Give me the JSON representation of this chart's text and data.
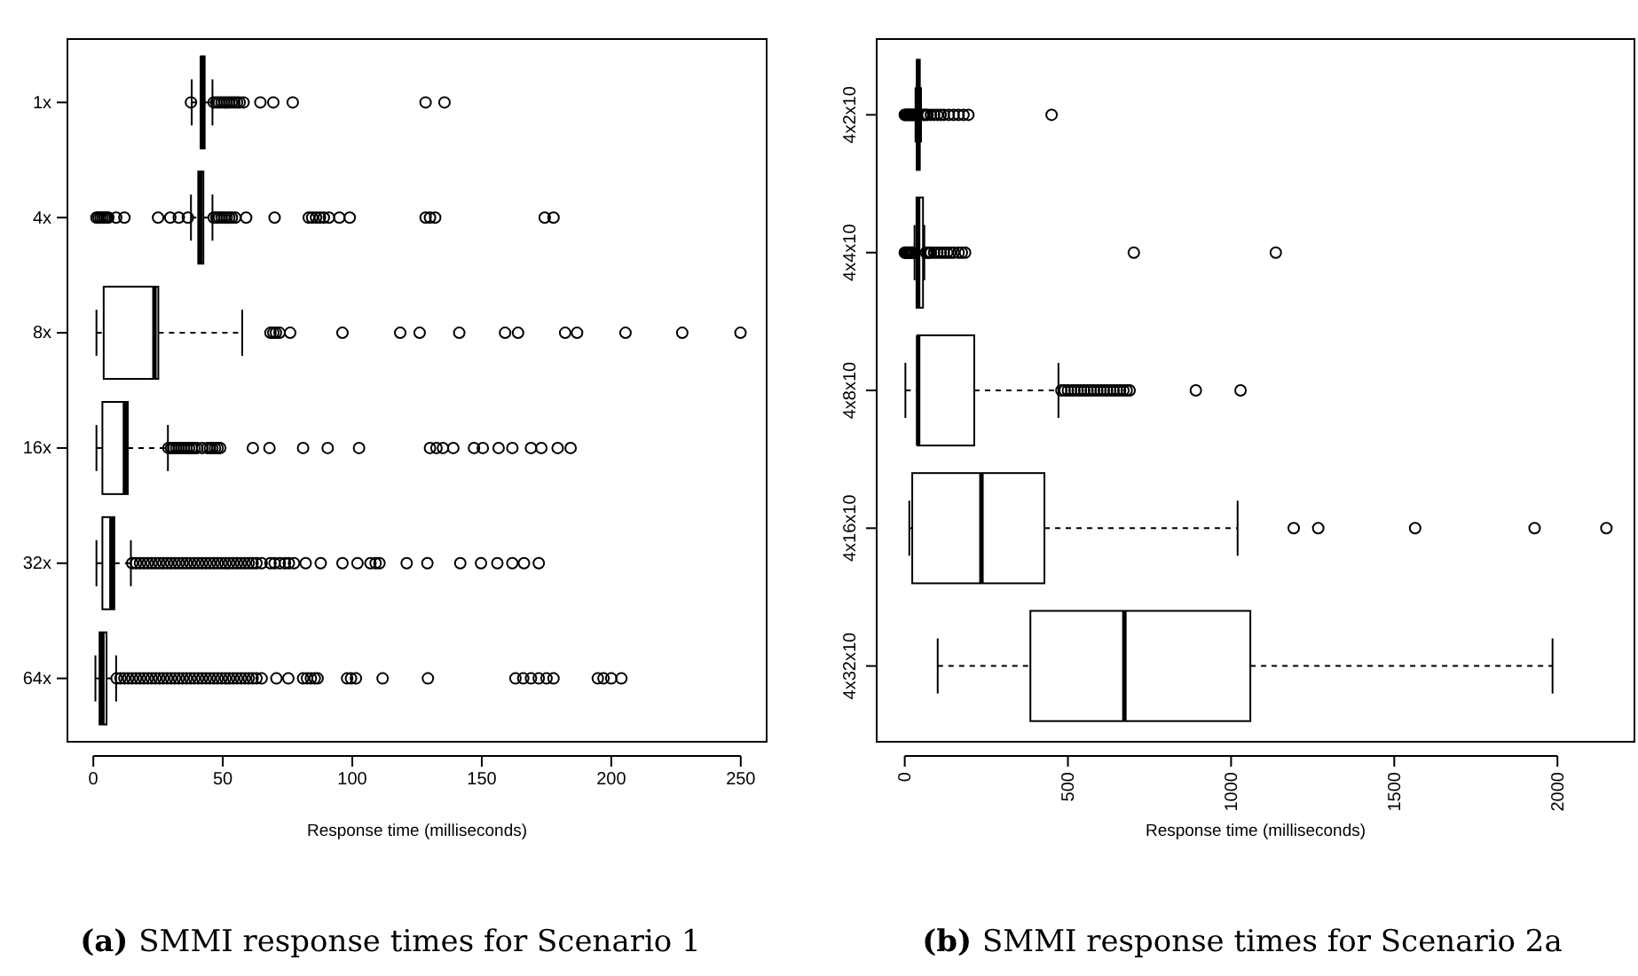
{
  "chart_data": [
    {
      "type": "box",
      "orientation": "horizontal",
      "xlabel": "Response time (milliseconds)",
      "categories": [
        "1x",
        "4x",
        "8x",
        "16x",
        "32x",
        "64x"
      ],
      "xlim": [
        -10,
        260
      ],
      "xticks": [
        0,
        50,
        100,
        150,
        200,
        250
      ],
      "annotations": [
        "(a) SMMI response times for Scenario 1"
      ],
      "boxes": [
        {
          "low": 38,
          "q1": 41.5,
          "median": 42,
          "q3": 43,
          "high": 46,
          "outliers": [
            37.7,
            46.5,
            47.5,
            48.5,
            49.5,
            50.5,
            51.5,
            52.5,
            53.5,
            54.5,
            55.5,
            56.5,
            58,
            64.5,
            69.5,
            77,
            128.3,
            135.6
          ]
        },
        {
          "low": 37.7,
          "q1": 40.5,
          "median": 41.3,
          "q3": 42.5,
          "high": 46,
          "outliers": [
            1.2,
            2,
            2.8,
            3.6,
            4.4,
            5.2,
            5.8,
            8.8,
            12,
            25,
            29.7,
            33,
            36.5,
            46.5,
            47.5,
            48.5,
            49.5,
            50.5,
            51.5,
            52.5,
            53.5,
            54.8,
            59,
            70,
            83.2,
            84.5,
            86,
            87.5,
            89,
            91,
            95,
            99,
            128.3,
            130,
            132,
            174.3,
            177.7
          ]
        },
        {
          "low": 1.2,
          "q1": 4,
          "median": 23.6,
          "q3": 25.1,
          "high": 57.5,
          "outliers": [
            68.4,
            69.5,
            70.5,
            71.9,
            76,
            96.2,
            118.5,
            126,
            141.3,
            159,
            164,
            182.2,
            186.8,
            205.5,
            227.4,
            249.9
          ]
        },
        {
          "low": 1.2,
          "q1": 3.5,
          "median": 12.2,
          "q3": 13.3,
          "high": 28.8,
          "outliers": [
            29,
            30,
            31,
            32,
            33,
            34,
            35,
            36,
            37,
            38,
            39,
            40,
            42,
            44,
            45,
            46,
            47,
            48,
            49,
            61.6,
            68,
            81,
            90.5,
            102.6,
            130,
            132.5,
            135,
            139,
            147,
            150.4,
            156.5,
            161.8,
            169,
            173,
            179.3,
            184.3
          ]
        },
        {
          "low": 1.2,
          "q1": 3.5,
          "median": 7,
          "q3": 8.1,
          "high": 14.5,
          "outliers": [
            15,
            16.5,
            18,
            19.5,
            21,
            22.5,
            24,
            25.5,
            27,
            28.5,
            30,
            31.5,
            33,
            34.5,
            36,
            37.5,
            39,
            40.5,
            42,
            43.5,
            45,
            46.5,
            48,
            49.5,
            51,
            52.5,
            54,
            55.5,
            57,
            58.5,
            60,
            61.5,
            63,
            65,
            68.4,
            70,
            72,
            74,
            75.5,
            77.5,
            82,
            87.8,
            96.2,
            102,
            107,
            109,
            110.5,
            121,
            129,
            141.7,
            149.7,
            156,
            161.8,
            166.3,
            172
          ]
        },
        {
          "low": 0.8,
          "q1": 2.4,
          "median": 3.5,
          "q3": 5.1,
          "high": 8.8,
          "outliers": [
            9,
            10.5,
            12,
            13.5,
            15,
            16.5,
            18,
            19.5,
            21,
            22.5,
            24,
            25.5,
            27,
            28.5,
            30,
            31.5,
            33,
            34.5,
            36,
            37.5,
            39,
            40.5,
            42,
            43.5,
            45,
            46.5,
            48,
            49.5,
            51,
            52.5,
            54,
            55.5,
            57,
            58.5,
            60,
            61.5,
            63,
            65,
            70.7,
            75.3,
            81,
            82.5,
            84,
            85.5,
            86.6,
            98,
            99.5,
            101.4,
            111.7,
            129.2,
            163,
            166,
            169,
            172,
            175,
            177.7,
            194.8,
            197,
            200,
            203.9
          ]
        }
      ]
    },
    {
      "type": "box",
      "orientation": "horizontal",
      "xlabel": "Response time (milliseconds)",
      "categories": [
        "4x2x10",
        "4x4x10",
        "4x8x10",
        "4x16x10",
        "4x32x10"
      ],
      "xlim": [
        -86,
        2236
      ],
      "xticks": [
        0,
        500,
        1000,
        1500,
        2000
      ],
      "annotations": [
        "(b) SMMI response times for Scenario 2a"
      ],
      "boxes": [
        {
          "low": 33,
          "q1": 37,
          "median": 41,
          "q3": 46,
          "high": 50,
          "outliers": [
            0,
            3,
            6,
            9,
            12,
            15,
            18,
            21,
            24,
            27,
            30,
            55,
            60,
            65,
            70,
            80,
            90,
            100,
            110,
            120,
            135,
            150,
            165,
            180,
            195,
            450
          ]
        },
        {
          "low": 30,
          "q1": 36,
          "median": 41,
          "q3": 56,
          "high": 60,
          "outliers": [
            0,
            3,
            6,
            9,
            12,
            15,
            18,
            21,
            24,
            27,
            65,
            70,
            75,
            80,
            90,
            100,
            110,
            120,
            130,
            140,
            150,
            165,
            175,
            185,
            702,
            1137
          ]
        },
        {
          "low": 2,
          "q1": 39,
          "median": 41,
          "q3": 213,
          "high": 471,
          "outliers": [
            480,
            490,
            500,
            510,
            520,
            530,
            540,
            550,
            560,
            570,
            580,
            590,
            600,
            610,
            620,
            630,
            640,
            650,
            660,
            670,
            680,
            689,
            892,
            1029
          ]
        },
        {
          "low": 14,
          "q1": 23,
          "median": 235,
          "q3": 428,
          "high": 1020,
          "outliers": [
            1192,
            1267,
            1564,
            1930,
            2150
          ]
        },
        {
          "low": 101,
          "q1": 385,
          "median": 673,
          "q3": 1059,
          "high": 1985
        }
      ]
    }
  ]
}
